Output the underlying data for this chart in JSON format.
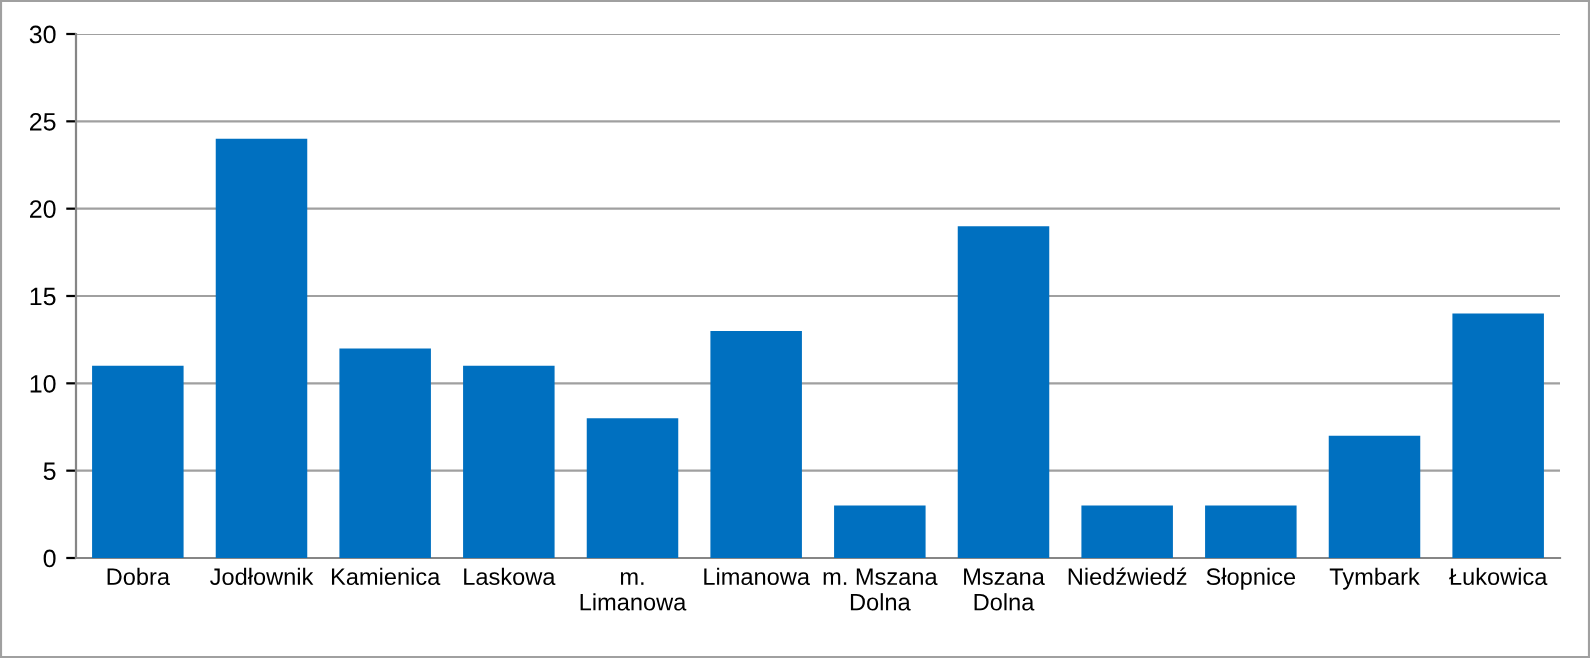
{
  "chart_data": {
    "type": "bar",
    "categories": [
      "Dobra",
      "Jodłownik",
      "Kamienica",
      "Laskowa",
      "m. Limanowa",
      "Limanowa",
      "m. Mszana Dolna",
      "Mszana Dolna",
      "Niedźwiedź",
      "Słopnice",
      "Tymbark",
      "Łukowica"
    ],
    "values": [
      11,
      24,
      12,
      11,
      8,
      13,
      3,
      19,
      3,
      3,
      7,
      14
    ],
    "color": "#0070c0",
    "ylim": [
      0,
      30
    ],
    "yticks": [
      0,
      5,
      10,
      15,
      20,
      25,
      30
    ],
    "grid": "y",
    "legend": false
  }
}
